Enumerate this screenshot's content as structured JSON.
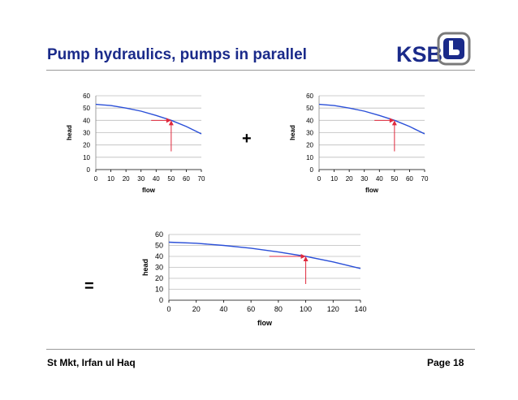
{
  "slide": {
    "title": "Pump hydraulics, pumps in parallel",
    "logo_text": "KSB",
    "plus": "+",
    "equals": "=",
    "footer_left": "St Mkt, Irfan ul Haq",
    "page": "Page 18"
  },
  "colors": {
    "title": "#1a2a8a",
    "curve": "#2a4fd8",
    "marker": "#e0283c",
    "grid": "#bdbdbd"
  },
  "chart_data": [
    {
      "type": "line",
      "xlabel": "flow",
      "ylabel": "head",
      "xlim": [
        0,
        70
      ],
      "ylim": [
        0,
        60
      ],
      "xticks": [
        0,
        10,
        20,
        30,
        40,
        50,
        60,
        70
      ],
      "yticks": [
        0,
        10,
        20,
        30,
        40,
        50,
        60
      ],
      "grid": "horizontal",
      "series": [
        {
          "x": [
            0,
            10,
            20,
            30,
            40,
            50,
            60,
            70
          ],
          "y": [
            53,
            52,
            50,
            47.5,
            44,
            40,
            35,
            29
          ]
        }
      ],
      "operating_point": {
        "x": 50,
        "y": 40
      }
    },
    {
      "type": "line",
      "xlabel": "flow",
      "ylabel": "head",
      "xlim": [
        0,
        70
      ],
      "ylim": [
        0,
        60
      ],
      "xticks": [
        0,
        10,
        20,
        30,
        40,
        50,
        60,
        70
      ],
      "yticks": [
        0,
        10,
        20,
        30,
        40,
        50,
        60
      ],
      "grid": "horizontal",
      "series": [
        {
          "x": [
            0,
            10,
            20,
            30,
            40,
            50,
            60,
            70
          ],
          "y": [
            53,
            52,
            50,
            47.5,
            44,
            40,
            35,
            29
          ]
        }
      ],
      "operating_point": {
        "x": 50,
        "y": 40
      }
    },
    {
      "type": "line",
      "xlabel": "flow",
      "ylabel": "head",
      "xlim": [
        0,
        140
      ],
      "ylim": [
        0,
        60
      ],
      "xticks": [
        0,
        20,
        40,
        60,
        80,
        100,
        120,
        140
      ],
      "yticks": [
        0,
        10,
        20,
        30,
        40,
        50,
        60
      ],
      "grid": "horizontal",
      "series": [
        {
          "x": [
            0,
            20,
            40,
            60,
            80,
            100,
            120,
            140
          ],
          "y": [
            53,
            52,
            50,
            47.5,
            44,
            40,
            35,
            29
          ]
        }
      ],
      "operating_point": {
        "x": 100,
        "y": 40
      }
    }
  ]
}
